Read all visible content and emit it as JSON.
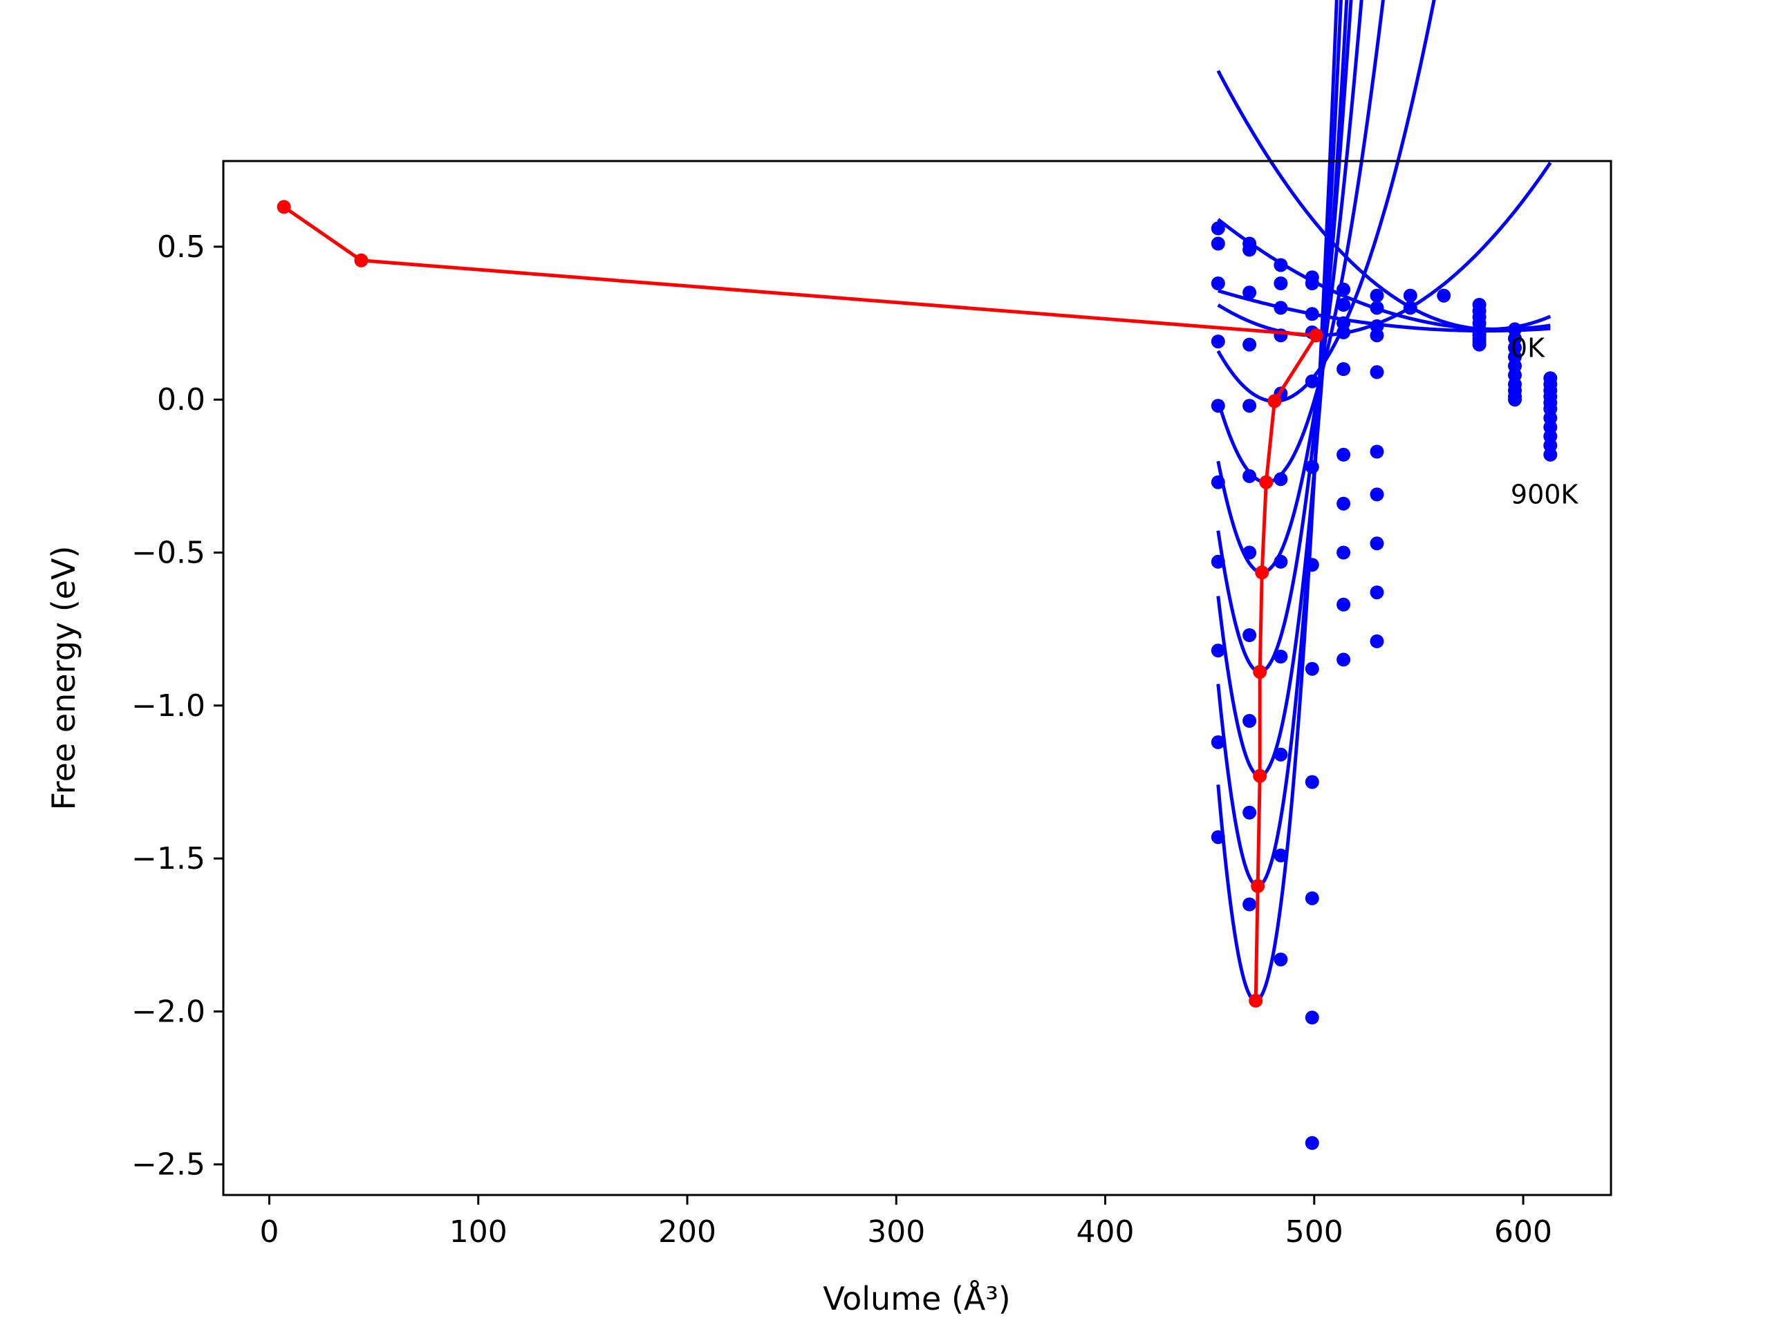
{
  "chart_data": {
    "type": "scatter",
    "title": "",
    "xlabel": "Volume (Å³)",
    "ylabel": "Free energy (eV)",
    "xlim": [
      -22,
      642
    ],
    "ylim": [
      -2.6,
      0.78
    ],
    "x_ticks": [
      0,
      100,
      200,
      300,
      400,
      500,
      600
    ],
    "y_ticks": [
      0.5,
      0.0,
      -0.5,
      -1.0,
      -1.5,
      -2.0,
      -2.5
    ],
    "x_tick_labels": [
      "0",
      "100",
      "200",
      "300",
      "400",
      "500",
      "600"
    ],
    "y_tick_labels": [
      "0.5",
      "0.0",
      "−0.5",
      "−1.0",
      "−1.5",
      "−2.0",
      "−2.5"
    ],
    "grid": false,
    "legend": "none",
    "colors": {
      "fit": "#0000ff",
      "points": "#0000ff",
      "minima": "#ff0000"
    },
    "annotations": [
      {
        "text": "0K",
        "x": 594,
        "y": 0.14
      },
      {
        "text": "900K",
        "x": 594,
        "y": -0.34
      }
    ],
    "x_volumes": [
      454,
      469,
      484,
      499,
      514,
      530,
      546,
      562,
      579,
      596,
      613
    ],
    "series": [
      {
        "E0": 0.23,
        "V0": 584,
        "B": 5e-05,
        "points": [
          [
            454,
            0.56
          ],
          [
            469,
            0.51
          ],
          [
            484,
            0.44
          ],
          [
            499,
            0.4
          ],
          [
            514,
            0.36
          ],
          [
            530,
            0.34
          ],
          [
            546,
            0.34
          ],
          [
            562,
            0.34
          ],
          [
            579,
            0.31
          ],
          [
            596,
            0.23
          ],
          [
            613,
            0.07
          ]
        ]
      },
      {
        "E0": 0.23,
        "V0": 588,
        "B": 2e-05,
        "points": [
          [
            454,
            0.51
          ],
          [
            469,
            0.49
          ],
          [
            484,
            0.38
          ],
          [
            499,
            0.38
          ],
          [
            514,
            0.31
          ],
          [
            530,
            0.3
          ],
          [
            546,
            0.3
          ],
          [
            579,
            0.29
          ],
          [
            596,
            0.2
          ],
          [
            613,
            0.05
          ]
        ]
      },
      {
        "E0": 0.225,
        "V0": 582,
        "B": 8e-06,
        "points": [
          [
            454,
            0.38
          ],
          [
            469,
            0.35
          ],
          [
            484,
            0.3
          ],
          [
            499,
            0.28
          ],
          [
            514,
            0.25
          ],
          [
            530,
            0.24
          ],
          [
            579,
            0.27
          ],
          [
            596,
            0.17
          ],
          [
            613,
            0.03
          ]
        ]
      },
      {
        "E0": 0.21,
        "V0": 501,
        "B": 4.5e-05,
        "points": [
          [
            454,
            0.19
          ],
          [
            469,
            0.18
          ],
          [
            484,
            0.21
          ],
          [
            499,
            0.22
          ],
          [
            514,
            0.22
          ],
          [
            530,
            0.21
          ],
          [
            579,
            0.25
          ],
          [
            596,
            0.14
          ],
          [
            613,
            0.01
          ]
        ]
      },
      {
        "E0": -0.005,
        "V0": 481,
        "B": 0.000225,
        "points": [
          [
            454,
            -0.02
          ],
          [
            469,
            -0.02
          ],
          [
            484,
            0.02
          ],
          [
            499,
            0.06
          ],
          [
            514,
            0.1
          ],
          [
            530,
            0.09
          ],
          [
            579,
            0.23
          ],
          [
            596,
            0.11
          ],
          [
            613,
            -0.01
          ]
        ]
      },
      {
        "E0": -0.27,
        "V0": 477,
        "B": 0.000503,
        "points": [
          [
            454,
            -0.27
          ],
          [
            469,
            -0.25
          ],
          [
            484,
            -0.26
          ],
          [
            499,
            -0.22
          ],
          [
            514,
            -0.18
          ],
          [
            530,
            -0.17
          ],
          [
            579,
            0.22
          ],
          [
            596,
            0.08
          ],
          [
            613,
            -0.03
          ]
        ]
      },
      {
        "E0": -0.565,
        "V0": 475,
        "B": 0.000825,
        "points": [
          [
            454,
            -0.53
          ],
          [
            469,
            -0.5
          ],
          [
            484,
            -0.53
          ],
          [
            499,
            -0.54
          ],
          [
            514,
            -0.34
          ],
          [
            530,
            -0.31
          ],
          [
            579,
            0.21
          ],
          [
            596,
            0.05
          ],
          [
            613,
            -0.06
          ]
        ]
      },
      {
        "E0": -0.89,
        "V0": 474,
        "B": 0.001155,
        "points": [
          [
            454,
            -0.82
          ],
          [
            469,
            -0.77
          ],
          [
            484,
            -0.84
          ],
          [
            499,
            -0.88
          ],
          [
            514,
            -0.5
          ],
          [
            530,
            -0.47
          ],
          [
            579,
            0.2
          ],
          [
            596,
            0.03
          ],
          [
            613,
            -0.09
          ]
        ]
      },
      {
        "E0": -1.23,
        "V0": 474,
        "B": 0.00147,
        "points": [
          [
            454,
            -1.12
          ],
          [
            469,
            -1.05
          ],
          [
            484,
            -1.16
          ],
          [
            499,
            -1.25
          ],
          [
            514,
            -0.67
          ],
          [
            530,
            -0.63
          ],
          [
            579,
            0.19
          ],
          [
            596,
            0.01
          ],
          [
            613,
            -0.12
          ]
        ]
      },
      {
        "E0": -1.59,
        "V0": 473,
        "B": 0.00183,
        "points": [
          [
            454,
            -1.43
          ],
          [
            469,
            -1.35
          ],
          [
            484,
            -1.49
          ],
          [
            499,
            -1.63
          ],
          [
            514,
            -0.85
          ],
          [
            530,
            -0.79
          ],
          [
            579,
            0.18
          ],
          [
            596,
            0.0
          ],
          [
            613,
            -0.15
          ]
        ]
      },
      {
        "E0": -1.965,
        "V0": 472,
        "B": 0.00218,
        "points": [
          [
            469,
            -1.65
          ],
          [
            484,
            -1.83
          ],
          [
            499,
            -2.02
          ],
          [
            613,
            -0.18
          ]
        ]
      }
    ],
    "outliers": [
      [
        499,
        -2.43
      ]
    ],
    "minima_line": [
      [
        7,
        0.63
      ],
      [
        44,
        0.455
      ],
      [
        501,
        0.21
      ],
      [
        481,
        -0.005
      ],
      [
        477,
        -0.27
      ],
      [
        475,
        -0.565
      ],
      [
        474,
        -0.89
      ],
      [
        474,
        -1.23
      ],
      [
        473,
        -1.59
      ],
      [
        472,
        -1.965
      ]
    ]
  }
}
